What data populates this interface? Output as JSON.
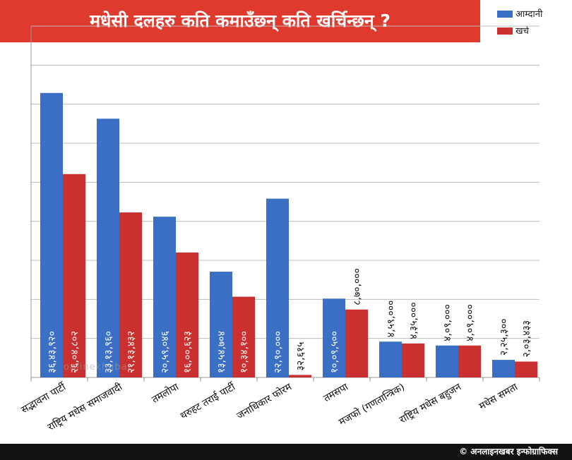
{
  "title": "मधेसी दलहरु कति कमाउँछन् कति खर्चिन्छन् ?",
  "legend": {
    "income_label": "आम्दानी",
    "expense_label": "खर्च",
    "income_color": "#3a6fc4",
    "expense_color": "#c9302f"
  },
  "footer": "© अनलाइनखबर इन्फोग्राफिक्स",
  "watermark": "onlinekhabar",
  "chart_data": {
    "type": "bar",
    "categories": [
      "सद्भावना पार्टी",
      "राष्ट्रिय मधेस समाजवादी",
      "तमलोपा",
      "थरुहट तराई पार्टी",
      "जनाधिकार फोरम",
      "तमसपा",
      "मजफो (गणतान्त्रिक)",
      "राष्ट्रिय मधेस बहुजन",
      "मधेस समता"
    ],
    "series": [
      {
        "name": "आम्दानी",
        "values": [
          3643920,
          3313960,
          2059046,
          1354704,
          2290000,
          1009500,
          459000,
          409000,
          225300
        ],
        "labels": [
          "३६,४३,९२०",
          "३३,१३,९६०",
          "२०,५९,०४६",
          "१३,५४,७०४",
          "२२,९०,०००",
          "१०,०९,५००",
          "४,५९,०००",
          "४,०९,०००",
          "२,२५,३००"
        ]
      },
      {
        "name": "खर्च",
        "values": [
          2604802,
          2113432,
          1600623,
          1034100,
          32615,
          870000,
          435000,
          409000,
          203433
        ],
        "labels": [
          "२६,०४,८०२",
          "२१,१३,४३२",
          "१६,००,६२३",
          "१०,३४,१००",
          "३२,६१५",
          "८,७०,०००",
          "४,३५,०००",
          "४,०९,०००",
          "२,०३,४३३"
        ]
      }
    ],
    "ylim": [
      0,
      4500000
    ],
    "grid": true,
    "legend_position": "top-right"
  }
}
